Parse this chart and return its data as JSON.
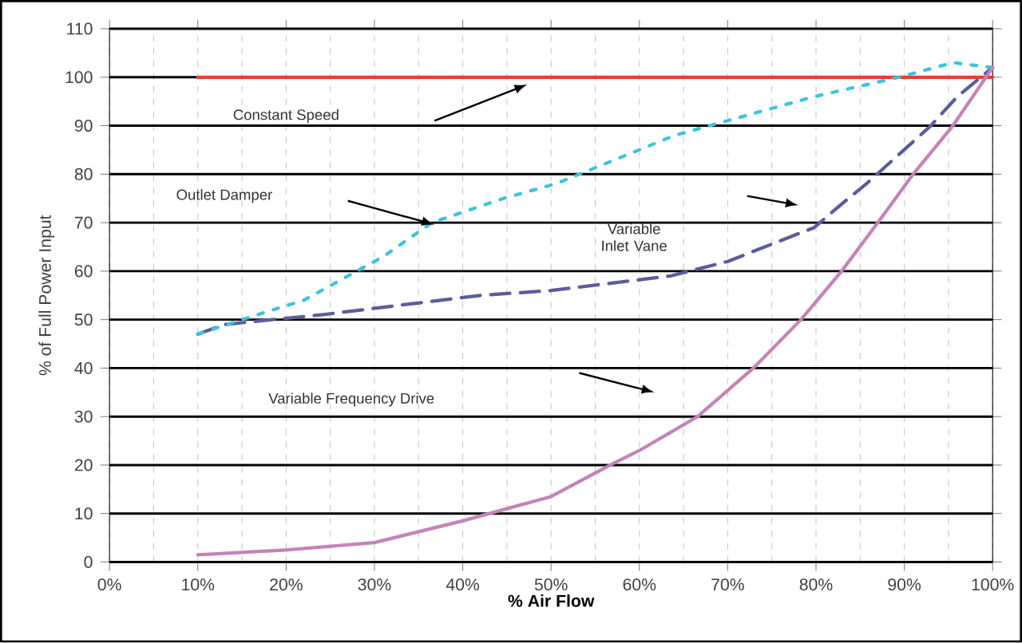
{
  "chart_data": {
    "type": "line",
    "xlabel": "% Air Flow",
    "ylabel": "% of Full Power Input",
    "xlim": [
      0,
      100
    ],
    "ylim": [
      0,
      110
    ],
    "xticks": [
      {
        "value": 0,
        "label": "0%"
      },
      {
        "value": 10,
        "label": "10%"
      },
      {
        "value": 20,
        "label": "20%"
      },
      {
        "value": 30,
        "label": "30%"
      },
      {
        "value": 40,
        "label": "40%"
      },
      {
        "value": 50,
        "label": "50%"
      },
      {
        "value": 60,
        "label": "60%"
      },
      {
        "value": 70,
        "label": "70%"
      },
      {
        "value": 80,
        "label": "80%"
      },
      {
        "value": 90,
        "label": "90%"
      },
      {
        "value": 100,
        "label": "100%"
      }
    ],
    "yticks": [
      0,
      10,
      20,
      30,
      40,
      50,
      60,
      70,
      80,
      90,
      100,
      110
    ],
    "grid": true,
    "marker": "none",
    "series": [
      {
        "color": "#e8402e",
        "line_style": "solid",
        "x": [
          10,
          20,
          30,
          40,
          50,
          60,
          70,
          80,
          90,
          100
        ],
        "values": [
          100,
          100,
          100,
          100,
          100,
          100,
          100,
          100,
          100,
          100
        ]
      },
      {
        "color": "#5c5c9c",
        "line_style": "dashed",
        "x": [
          10,
          13,
          24,
          42,
          50,
          63.5,
          70,
          79.8,
          83,
          85.7,
          93,
          96,
          100
        ],
        "values": [
          47,
          49,
          51,
          55,
          56,
          59,
          62,
          69,
          74,
          78,
          90,
          96,
          102
        ]
      },
      {
        "color": "#3cc4dc",
        "line_style": "dotted",
        "x": [
          10,
          15,
          22,
          31,
          36.5,
          44.6,
          50.5,
          64,
          79.8,
          89.4,
          95.5,
          100
        ],
        "values": [
          47,
          50,
          54,
          63,
          70,
          75,
          78,
          88,
          96,
          100,
          103,
          102
        ]
      },
      {
        "color": "#c484b8",
        "line_style": "solid",
        "x": [
          10,
          20,
          30,
          40,
          45,
          50,
          56.7,
          60,
          66.6,
          72.9,
          78.3,
          82.9,
          87,
          91,
          95.5,
          100
        ],
        "values": [
          1.5,
          2.5,
          4,
          8.5,
          11,
          13.5,
          20,
          23,
          30,
          40,
          50,
          60,
          70,
          80,
          90,
          102
        ]
      }
    ],
    "annotations": [
      "Constant Speed",
      "Outlet Damper",
      "Variable Inlet Vane",
      "Variable Frequency Drive"
    ]
  }
}
